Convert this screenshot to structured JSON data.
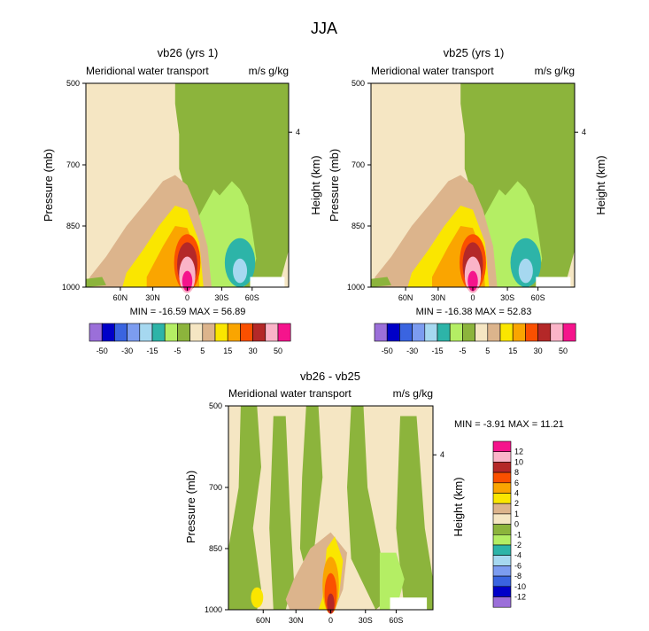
{
  "title": "JJA",
  "colors": {
    "main_palette": [
      "#9b6fd9",
      "#0000c8",
      "#3a64e0",
      "#7c9cf0",
      "#a6d8f0",
      "#2db4a8",
      "#b4ee64",
      "#8cb43c",
      "#f5e6c3",
      "#dcb48c",
      "#fae600",
      "#faa500",
      "#fa5000",
      "#b42828",
      "#fab4c8",
      "#f5148c"
    ],
    "diff_palette": [
      "#9b6fd9",
      "#0000c8",
      "#3a64e0",
      "#7c9cf0",
      "#a6d8f0",
      "#2db4a8",
      "#b4ee64",
      "#8cb43c",
      "#f5e6c3",
      "#dcb48c",
      "#fae600",
      "#faa500",
      "#fa5000",
      "#b42828",
      "#fab4c8",
      "#f5148c"
    ]
  },
  "chart_data": [
    {
      "type": "contour",
      "id": "vb26",
      "title": "vb26 (yrs 1)",
      "left_label": "Meridional water transport",
      "right_label": "m/s g/kg",
      "ylabel": "Pressure (mb)",
      "right_ylabel": "Height (km)",
      "y_ticks": [
        "500",
        "700",
        "850",
        "1000"
      ],
      "right_ticks": [
        "4"
      ],
      "x_ticks": [
        "60N",
        "30N",
        "0",
        "30S",
        "60S"
      ],
      "stats": "MIN = -16.59   MAX =  56.89",
      "levels": [
        "-50",
        "-30",
        "-15",
        "-5",
        "5",
        "15",
        "30",
        "50"
      ]
    },
    {
      "type": "contour",
      "id": "vb25",
      "title": "vb25 (yrs 1)",
      "left_label": "Meridional water transport",
      "right_label": "m/s g/kg",
      "ylabel": "Pressure (mb)",
      "right_ylabel": "Height (km)",
      "y_ticks": [
        "500",
        "700",
        "850",
        "1000"
      ],
      "right_ticks": [
        "4"
      ],
      "x_ticks": [
        "60N",
        "30N",
        "0",
        "30S",
        "60S"
      ],
      "stats": "MIN = -16.38   MAX =  52.83",
      "levels": [
        "-50",
        "-30",
        "-15",
        "-5",
        "5",
        "15",
        "30",
        "50"
      ]
    },
    {
      "type": "contour",
      "id": "diff",
      "title": "vb26 - vb25",
      "left_label": "Meridional water transport",
      "right_label": "m/s g/kg",
      "ylabel": "Pressure (mb)",
      "right_ylabel": "Height (km)",
      "y_ticks": [
        "500",
        "700",
        "850",
        "1000"
      ],
      "right_ticks": [
        "4"
      ],
      "x_ticks": [
        "60N",
        "30N",
        "0",
        "30S",
        "60S"
      ],
      "stats": "MIN =  -3.91   MAX =  11.21",
      "levels": [
        "12",
        "10",
        "8",
        "6",
        "4",
        "2",
        "1",
        "0",
        "-1",
        "-2",
        "-4",
        "-6",
        "-8",
        "-10",
        "-12"
      ]
    }
  ]
}
